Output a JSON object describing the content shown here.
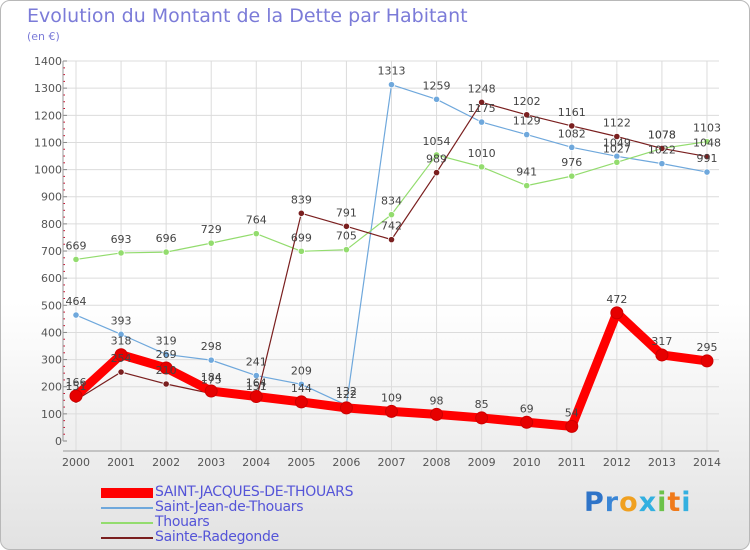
{
  "title": "Evolution du Montant de la Dette par Habitant",
  "subtitle": "(en €)",
  "logo": {
    "text": "Proxiti",
    "colors": [
      "#2f74c8",
      "#3a86d6",
      "#f0a020",
      "#33b0e0",
      "#6cc24a",
      "#f07a1a",
      "#33b0e0"
    ]
  },
  "chart_data": {
    "type": "line",
    "title": "Evolution du Montant de la Dette par Habitant",
    "ylabel": "(en €)",
    "ylim": [
      0,
      1400
    ],
    "yticks": [
      0,
      100,
      200,
      300,
      400,
      500,
      600,
      700,
      800,
      900,
      1000,
      1100,
      1200,
      1300,
      1400
    ],
    "x": [
      "2000",
      "2001",
      "2002",
      "2003",
      "2004",
      "2005",
      "2006",
      "2007",
      "2008",
      "2009",
      "2010",
      "2011",
      "2012",
      "2013",
      "2014"
    ],
    "grid": true,
    "legend_position": "bottom-left",
    "series": [
      {
        "name": "SAINT-JACQUES-DE-THOUARS",
        "color": "#ff0000",
        "values": [
          166,
          318,
          269,
          184,
          164,
          144,
          122,
          109,
          98,
          85,
          69,
          54,
          472,
          317,
          295
        ]
      },
      {
        "name": "Saint-Jean-de-Thouars",
        "color": "#6fa8dc",
        "values": [
          464,
          393,
          319,
          298,
          241,
          209,
          132,
          1313,
          1259,
          1175,
          1129,
          1082,
          1049,
          1022,
          991
        ]
      },
      {
        "name": "Thouars",
        "color": "#93dc6e",
        "values": [
          669,
          693,
          696,
          729,
          764,
          699,
          705,
          834,
          1054,
          1010,
          941,
          976,
          1027,
          1078,
          1103
        ]
      },
      {
        "name": "Sainte-Radegonde",
        "color": "#7a1f1f",
        "values": [
          151,
          254,
          210,
          175,
          151,
          839,
          791,
          742,
          989,
          1248,
          1202,
          1161,
          1122,
          1078,
          1048
        ]
      }
    ]
  }
}
